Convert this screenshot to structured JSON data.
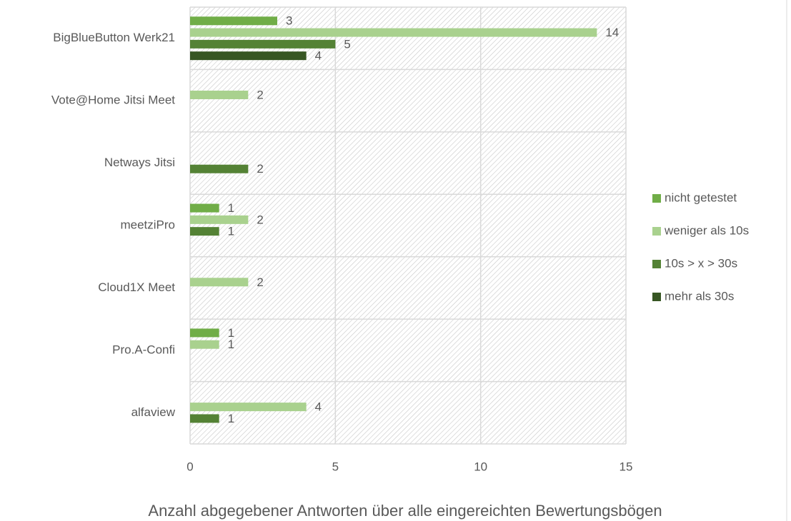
{
  "chart_data": {
    "type": "bar",
    "orientation": "horizontal",
    "x_label": "Anzahl abgegebener Antworten über alle eingereichten Bewertungsbögen",
    "categories": [
      "BigBlueButton Werk21",
      "Vote@Home Jitsi Meet",
      "Netways Jitsi",
      "meetziPro",
      "Cloud1X Meet",
      "Pro.A-Confi",
      "alfaview"
    ],
    "series": [
      {
        "name": "nicht getestet",
        "color": "#70ad47",
        "values": [
          3,
          null,
          null,
          1,
          null,
          1,
          null
        ]
      },
      {
        "name": "weniger als 10s",
        "color": "#a9d18e",
        "values": [
          14,
          2,
          null,
          2,
          2,
          1,
          4
        ]
      },
      {
        "name": "10s > x > 30s",
        "color": "#548235",
        "values": [
          5,
          null,
          2,
          1,
          null,
          null,
          1
        ]
      },
      {
        "name": "mehr als 30s",
        "color": "#375623",
        "values": [
          4,
          null,
          null,
          null,
          null,
          null,
          null
        ]
      }
    ],
    "xlim": [
      0,
      15
    ],
    "xticks": [
      0,
      5,
      10,
      15
    ],
    "grid": true,
    "legend": "right"
  }
}
